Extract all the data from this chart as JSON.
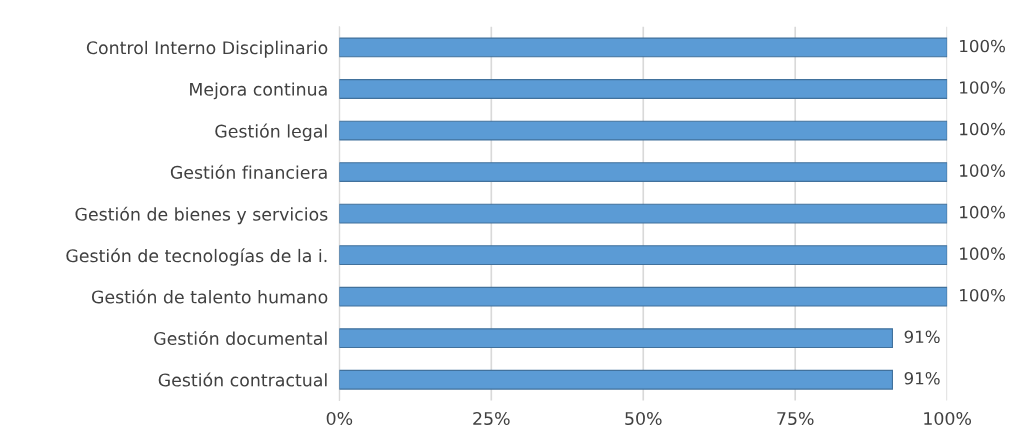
{
  "chart_data": {
    "type": "bar",
    "orientation": "horizontal",
    "categories": [
      "Control Interno Disciplinario",
      "Mejora continua",
      "Gestión legal",
      "Gestión financiera",
      "Gestión de bienes y servicios",
      "Gestión de tecnologías de la i.",
      "Gestión de talento humano",
      "Gestión documental",
      "Gestión contractual"
    ],
    "values": [
      100,
      100,
      100,
      100,
      100,
      100,
      100,
      91,
      91
    ],
    "value_labels": [
      "100%",
      "100%",
      "100%",
      "100%",
      "100%",
      "100%",
      "100%",
      "91%",
      "91%"
    ],
    "color": "#5b9bd5",
    "xlim": [
      0,
      100
    ],
    "xticks": [
      {
        "value": 0,
        "label": "0%"
      },
      {
        "value": 25,
        "label": "25%"
      },
      {
        "value": 50,
        "label": "50%"
      },
      {
        "value": 75,
        "label": "75%"
      },
      {
        "value": 100,
        "label": "100%"
      }
    ],
    "grid": "x"
  }
}
